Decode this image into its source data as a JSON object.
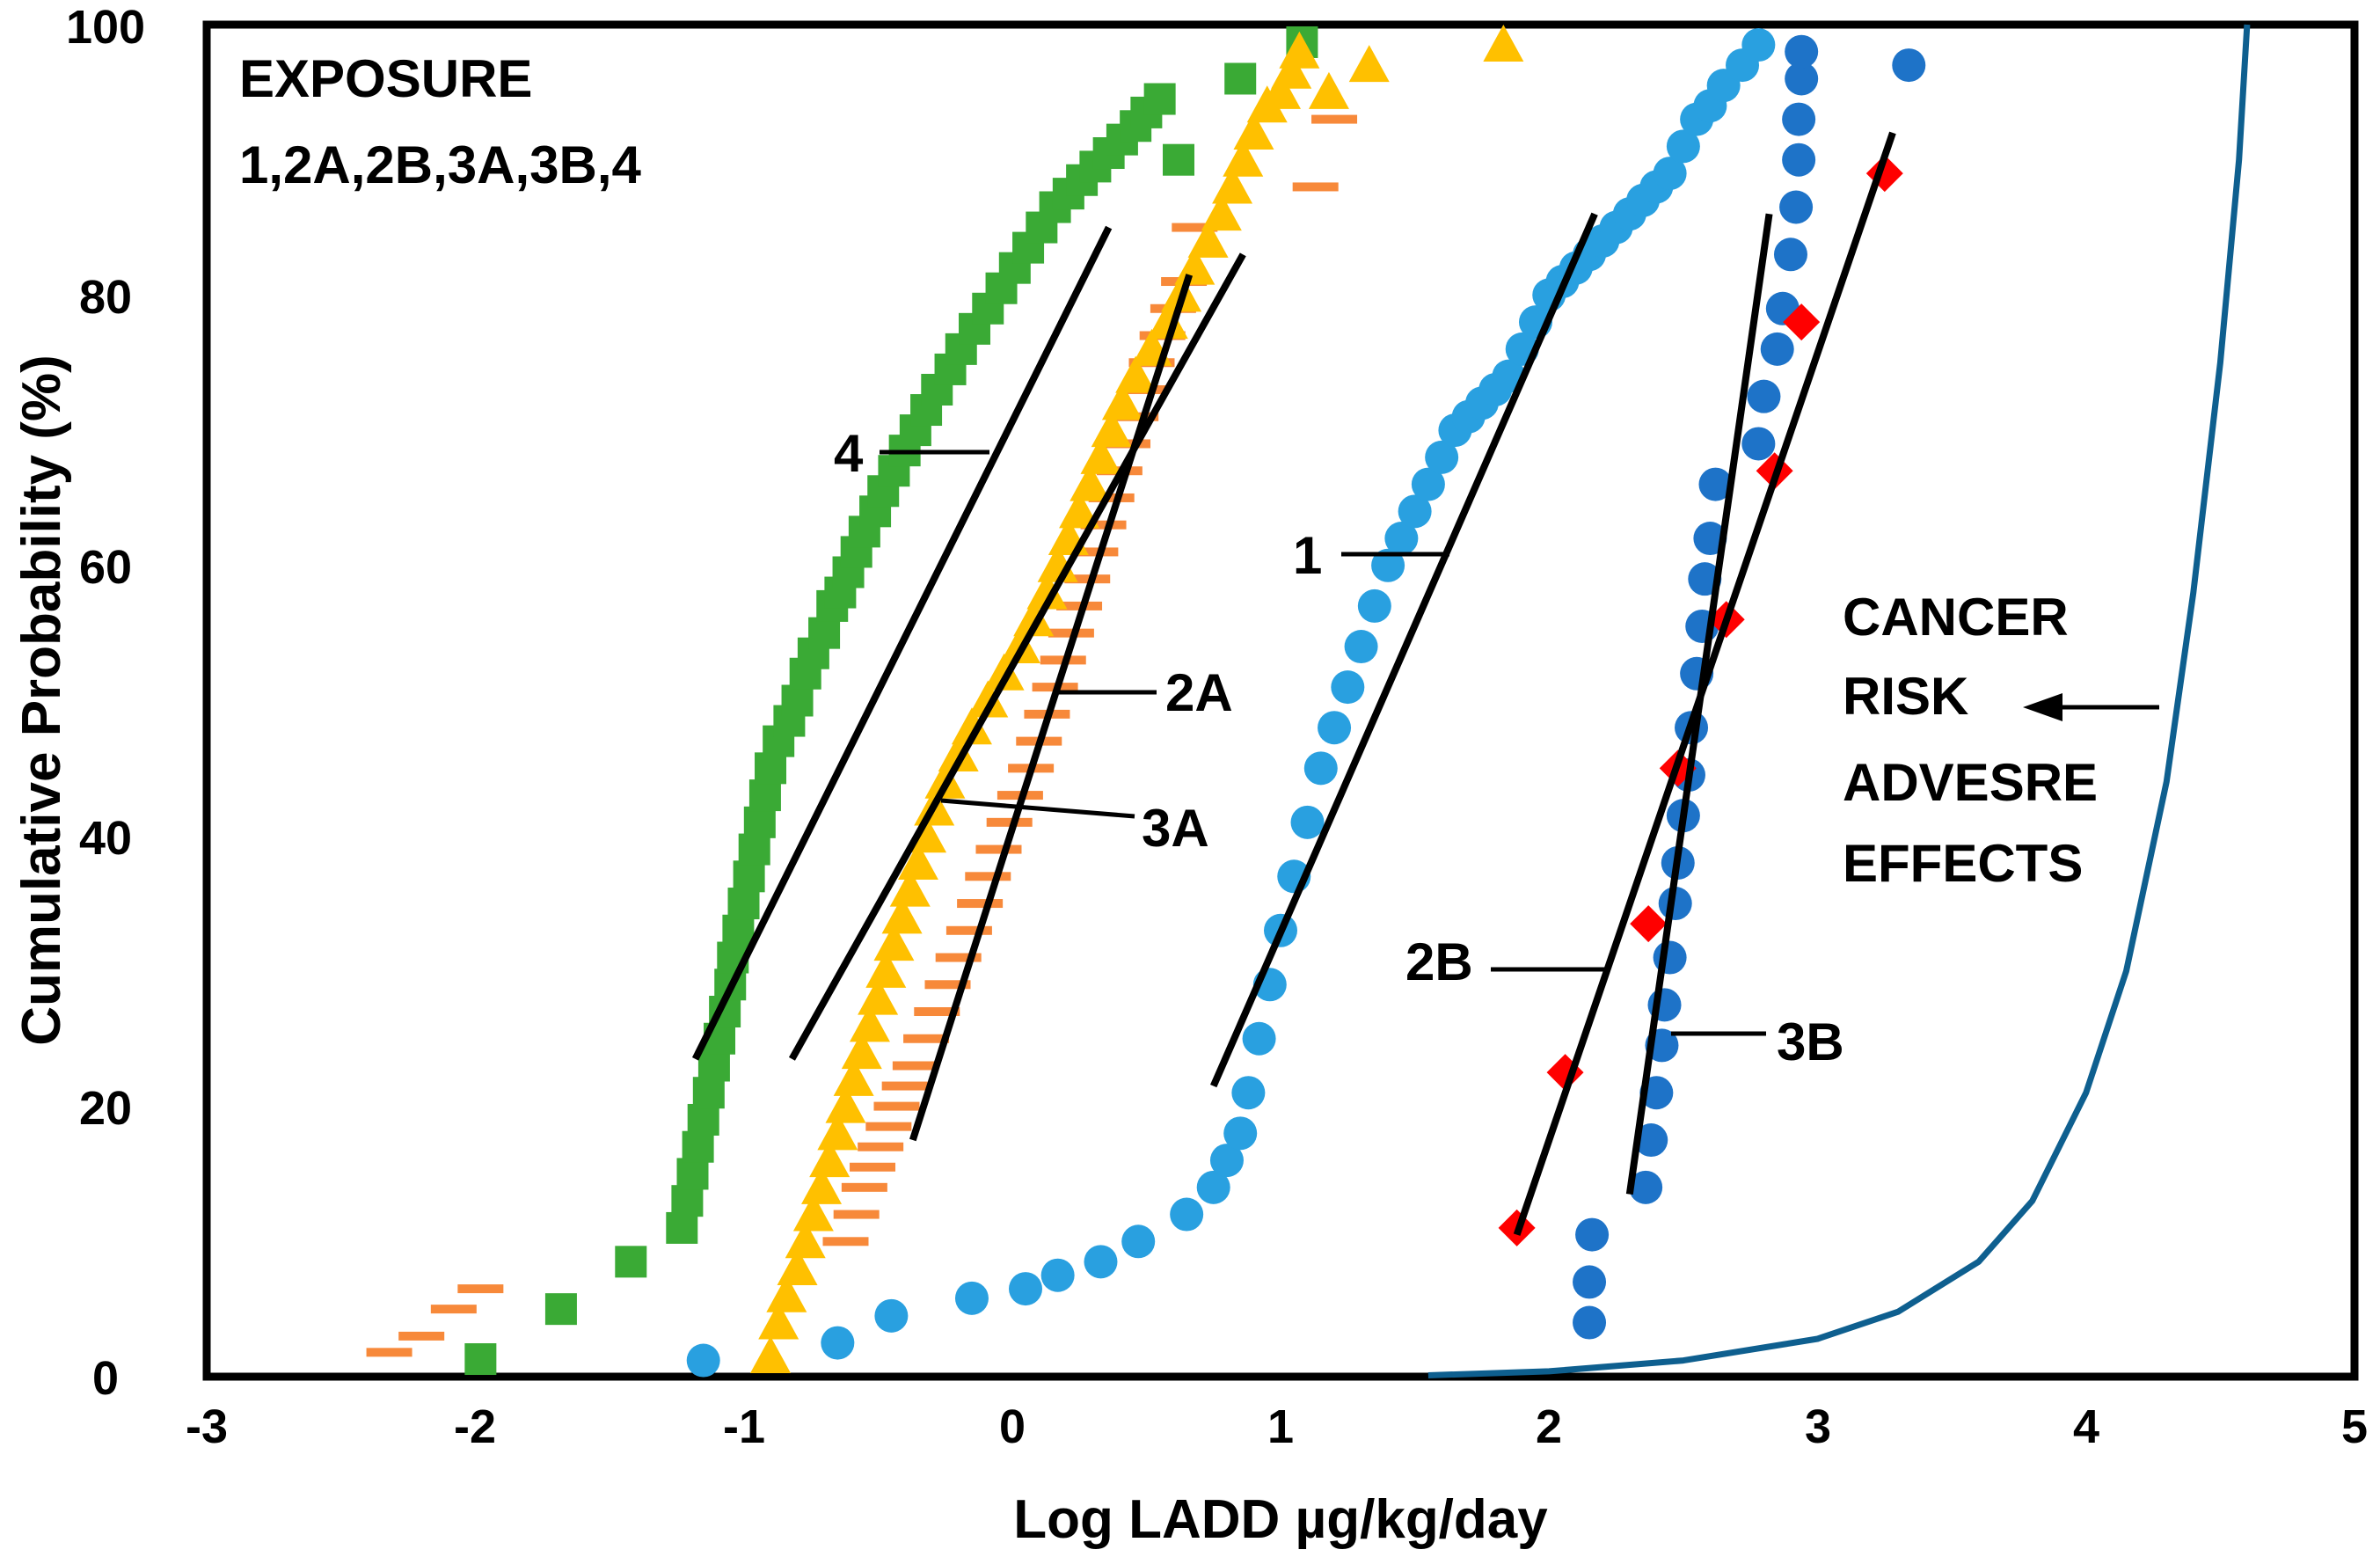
{
  "chart_data": {
    "type": "scatter",
    "title": "",
    "xlabel": "Log LADD µg/kg/day",
    "ylabel": "Cumulative Probability (%)",
    "xlim": [
      -3,
      5
    ],
    "ylim": [
      0,
      100
    ],
    "x_ticks": [
      "-3",
      "-2",
      "-1",
      "0",
      "1",
      "2",
      "3",
      "4",
      "5"
    ],
    "y_ticks": [
      "0",
      "20",
      "40",
      "60",
      "80",
      "100"
    ],
    "grid": false,
    "legend": "none",
    "annotation": {
      "line1": "EXPOSURE",
      "line2": "1,2A,2B,3A,3B,4"
    },
    "risk_label": {
      "line1": "CANCER",
      "line2": "RISK",
      "line3": "ADVESRE",
      "line4": "EFFECTS"
    },
    "series_labels": {
      "s4": "4",
      "s1": "1",
      "s2A": "2A",
      "s3A": "3A",
      "s2B": "2B",
      "s3B": "3B"
    },
    "colors": {
      "s4": "#3aaa35",
      "s2A": "#f7893a",
      "s3A": "#ffc000",
      "s1": "#29a0e0",
      "s3B": "#1e73c8",
      "s2B": "#ff0000",
      "risk_curve": "#0e5f8f",
      "fit_line": "#000000"
    },
    "series": [
      {
        "name": "4",
        "marker": "square",
        "color": "#3aaa35",
        "x": [
          -1.98,
          -1.68,
          -1.42,
          -1.23,
          -1.21,
          -1.19,
          -1.17,
          -1.15,
          -1.13,
          -1.11,
          -1.09,
          -1.07,
          -1.05,
          -1.04,
          -1.02,
          -1.0,
          -0.98,
          -0.96,
          -0.94,
          -0.92,
          -0.9,
          -0.87,
          -0.83,
          -0.8,
          -0.77,
          -0.74,
          -0.7,
          -0.67,
          -0.64,
          -0.61,
          -0.58,
          -0.55,
          -0.51,
          -0.48,
          -0.44,
          -0.4,
          -0.36,
          -0.32,
          -0.28,
          -0.23,
          -0.19,
          -0.14,
          -0.09,
          -0.04,
          0.01,
          0.06,
          0.11,
          0.16,
          0.21,
          0.26,
          0.31,
          0.36,
          0.41,
          0.46,
          0.5,
          0.55,
          0.62,
          0.85,
          1.08
        ],
        "y": [
          1.3,
          5,
          8.5,
          11,
          13,
          15,
          17,
          19,
          21,
          23,
          25,
          27,
          29,
          31,
          33,
          35,
          37,
          39,
          41,
          43,
          45,
          47,
          48.5,
          50,
          52,
          53.5,
          55,
          57,
          58,
          59.5,
          61,
          62.5,
          64,
          65.5,
          67,
          68.5,
          70,
          71.5,
          73,
          74.5,
          76,
          77.5,
          79,
          80.5,
          82,
          83.5,
          85,
          86.5,
          87.5,
          88.5,
          89.5,
          90.5,
          91.5,
          92.5,
          93.5,
          94.5,
          90,
          96,
          98.7
        ]
      },
      {
        "name": "2A",
        "marker": "dash",
        "color": "#f7893a",
        "x": [
          -2.32,
          -2.2,
          -2.08,
          -1.98,
          -0.62,
          -0.58,
          -0.55,
          -0.52,
          -0.49,
          -0.46,
          -0.43,
          -0.4,
          -0.36,
          -0.32,
          -0.28,
          -0.24,
          -0.2,
          -0.16,
          -0.12,
          -0.09,
          -0.05,
          -0.01,
          0.03,
          0.07,
          0.1,
          0.13,
          0.16,
          0.19,
          0.22,
          0.25,
          0.28,
          0.31,
          0.34,
          0.37,
          0.4,
          0.43,
          0.46,
          0.49,
          0.52,
          0.56,
          0.6,
          0.64,
          0.68,
          1.13,
          1.2
        ],
        "y": [
          1.8,
          3,
          5,
          6.5,
          10,
          12,
          14,
          15.5,
          17,
          18.5,
          20,
          21.5,
          23,
          25,
          27,
          29,
          31,
          33,
          35,
          37,
          39,
          41,
          43,
          45,
          47,
          49,
          51,
          53,
          55,
          57,
          59,
          61,
          63,
          65,
          67,
          69,
          71,
          73,
          75,
          77,
          79,
          81,
          85,
          88,
          93
        ]
      },
      {
        "name": "3A",
        "marker": "triangle",
        "color": "#ffc000",
        "x": [
          -0.9,
          -0.87,
          -0.84,
          -0.8,
          -0.77,
          -0.74,
          -0.71,
          -0.68,
          -0.65,
          -0.62,
          -0.59,
          -0.56,
          -0.53,
          -0.5,
          -0.47,
          -0.44,
          -0.41,
          -0.38,
          -0.35,
          -0.32,
          -0.29,
          -0.25,
          -0.2,
          -0.15,
          -0.09,
          -0.03,
          0.03,
          0.08,
          0.13,
          0.17,
          0.21,
          0.25,
          0.29,
          0.33,
          0.37,
          0.41,
          0.46,
          0.52,
          0.58,
          0.63,
          0.68,
          0.73,
          0.78,
          0.82,
          0.86,
          0.9,
          0.95,
          1.0,
          1.04,
          1.07,
          1.18,
          1.33,
          1.83
        ],
        "y": [
          1.5,
          4,
          6,
          8,
          10,
          12,
          14,
          16,
          18,
          20,
          22,
          24,
          26,
          28,
          30,
          32,
          34,
          36,
          38,
          40,
          42,
          44,
          46,
          48,
          50,
          52,
          54,
          56,
          58,
          60,
          62,
          64,
          66,
          68,
          70,
          72,
          74,
          76,
          78,
          80,
          82,
          84,
          86,
          88,
          90,
          92,
          94,
          95,
          96.5,
          98,
          95,
          97,
          98.5
        ]
      },
      {
        "name": "1",
        "marker": "circle",
        "color": "#29a0e0",
        "x": [
          -1.15,
          -0.65,
          -0.45,
          -0.15,
          0.05,
          0.17,
          0.33,
          0.47,
          0.65,
          0.75,
          0.8,
          0.85,
          0.88,
          0.92,
          0.96,
          1.0,
          1.05,
          1.1,
          1.15,
          1.2,
          1.25,
          1.3,
          1.35,
          1.4,
          1.45,
          1.5,
          1.55,
          1.6,
          1.65,
          1.7,
          1.75,
          1.8,
          1.85,
          1.9,
          1.95,
          2.0,
          2.05,
          2.1,
          2.15,
          2.2,
          2.25,
          2.3,
          2.35,
          2.4,
          2.45,
          2.5,
          2.55,
          2.6,
          2.65,
          2.72,
          2.78
        ],
        "y": [
          1.2,
          2.5,
          4.5,
          5.8,
          6.5,
          7.5,
          8.5,
          10,
          12,
          14,
          16,
          18,
          21,
          25,
          29,
          33,
          37,
          41,
          45,
          48,
          51,
          54,
          57,
          60,
          62,
          64,
          66,
          68,
          70,
          71,
          72,
          73,
          74,
          76,
          78,
          80,
          81,
          82,
          83,
          84,
          85,
          86,
          87,
          88,
          89,
          91,
          93,
          94,
          95.5,
          97,
          98.5
        ]
      },
      {
        "name": "3B",
        "marker": "circle",
        "color": "#1e73c8",
        "x": [
          2.15,
          2.15,
          2.16,
          2.36,
          2.38,
          2.4,
          2.42,
          2.43,
          2.45,
          2.47,
          2.48,
          2.5,
          2.52,
          2.53,
          2.55,
          2.57,
          2.58,
          2.6,
          2.62,
          2.78,
          2.8,
          2.85,
          2.87,
          2.9,
          2.92,
          2.93,
          2.93,
          2.94,
          2.94,
          3.34
        ],
        "y": [
          4,
          7,
          10.5,
          14,
          17.5,
          21,
          24.5,
          27.5,
          31,
          35,
          38,
          41.5,
          44.5,
          48,
          52,
          55.5,
          59,
          62,
          66,
          69,
          72.5,
          76,
          79,
          83,
          86.5,
          90,
          93,
          96,
          98,
          97
        ]
      },
      {
        "name": "2B",
        "marker": "diamond",
        "color": "#ff0000",
        "x": [
          1.88,
          2.06,
          2.37,
          2.48,
          2.66,
          2.84,
          2.94,
          3.25
        ],
        "y": [
          11,
          22.5,
          33.5,
          45,
          56,
          67,
          78,
          89
        ]
      }
    ],
    "fit_lines": [
      {
        "name": "4",
        "from": [
          -1.18,
          23.5
        ],
        "to": [
          0.36,
          85
        ]
      },
      {
        "name": "3A",
        "from": [
          -0.82,
          23.5
        ],
        "to": [
          0.86,
          83
        ]
      },
      {
        "name": "2A",
        "from": [
          -0.37,
          17.5
        ],
        "to": [
          0.66,
          81.5
        ]
      },
      {
        "name": "1",
        "from": [
          0.75,
          21.5
        ],
        "to": [
          2.17,
          86
        ]
      },
      {
        "name": "2B",
        "from": [
          1.88,
          10.5
        ],
        "to": [
          3.28,
          92
        ]
      },
      {
        "name": "3B",
        "from": [
          2.3,
          13.5
        ],
        "to": [
          2.82,
          86
        ]
      }
    ],
    "risk_curve": {
      "name": "cancer risk / adverse effects",
      "x": [
        1.55,
        2.0,
        2.5,
        3.0,
        3.3,
        3.6,
        3.8,
        4.0,
        4.15,
        4.3,
        4.4,
        4.5,
        4.57,
        4.6
      ],
      "y": [
        0.1,
        0.4,
        1.2,
        2.8,
        4.8,
        8.5,
        13,
        21,
        30,
        44,
        58,
        75,
        90,
        100
      ]
    }
  }
}
